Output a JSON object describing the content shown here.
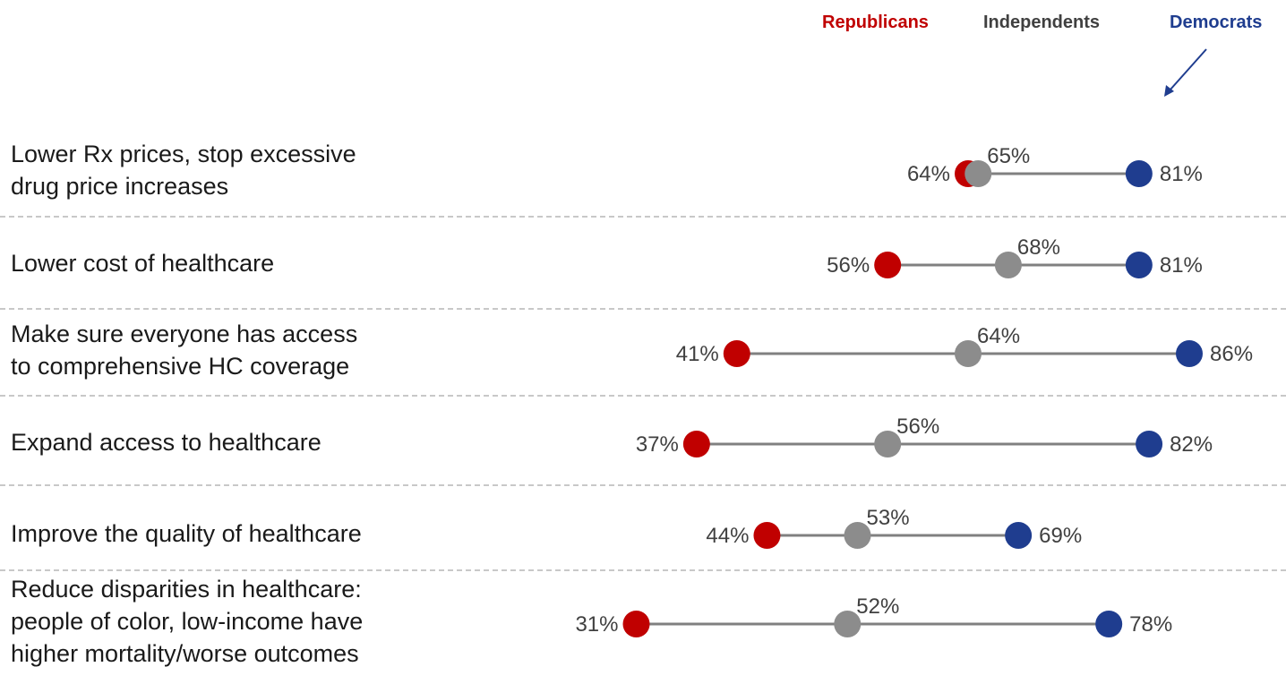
{
  "legend": {
    "republicans": "Republicans",
    "independents": "Independents",
    "democrats": "Democrats"
  },
  "colors": {
    "republicans": "#c00000",
    "independents": "#8c8c8c",
    "democrats": "#1f3d8f",
    "connector": "#808080",
    "divider": "#a6a6a6",
    "arrow": "#1f3d8f"
  },
  "chart_data": {
    "type": "dot-plot",
    "series": [
      {
        "name": "Republicans",
        "values": [
          64,
          56,
          41,
          37,
          44,
          31
        ]
      },
      {
        "name": "Independents",
        "values": [
          65,
          68,
          64,
          56,
          53,
          52
        ]
      },
      {
        "name": "Democrats",
        "values": [
          81,
          81,
          86,
          82,
          69,
          78
        ]
      }
    ],
    "categories": [
      "Lower Rx prices, stop excessive drug price increases",
      "Lower cost of healthcare",
      "Make sure everyone has access to comprehensive HC coverage",
      "Expand access to healthcare",
      "Improve the quality of healthcare",
      "Reduce disparities in healthcare: people of color, low-income have higher mortality/worse outcomes"
    ],
    "value_suffix": "%",
    "rows": [
      {
        "label": "Lower Rx prices, stop excessive\ndrug price increases",
        "republicans": 64,
        "independents": 65,
        "democrats": 81
      },
      {
        "label": "Lower cost of healthcare",
        "republicans": 56,
        "independents": 68,
        "democrats": 81
      },
      {
        "label": "Make sure everyone has access\nto comprehensive HC coverage",
        "republicans": 41,
        "independents": 64,
        "democrats": 86
      },
      {
        "label": "Expand access to healthcare",
        "republicans": 37,
        "independents": 56,
        "democrats": 82
      },
      {
        "label": "Improve the quality of healthcare",
        "republicans": 44,
        "independents": 53,
        "democrats": 69
      },
      {
        "label": "Reduce disparities in healthcare:\npeople of color, low-income have\nhigher mortality/worse outcomes",
        "republicans": 31,
        "independents": 52,
        "democrats": 78
      }
    ]
  }
}
